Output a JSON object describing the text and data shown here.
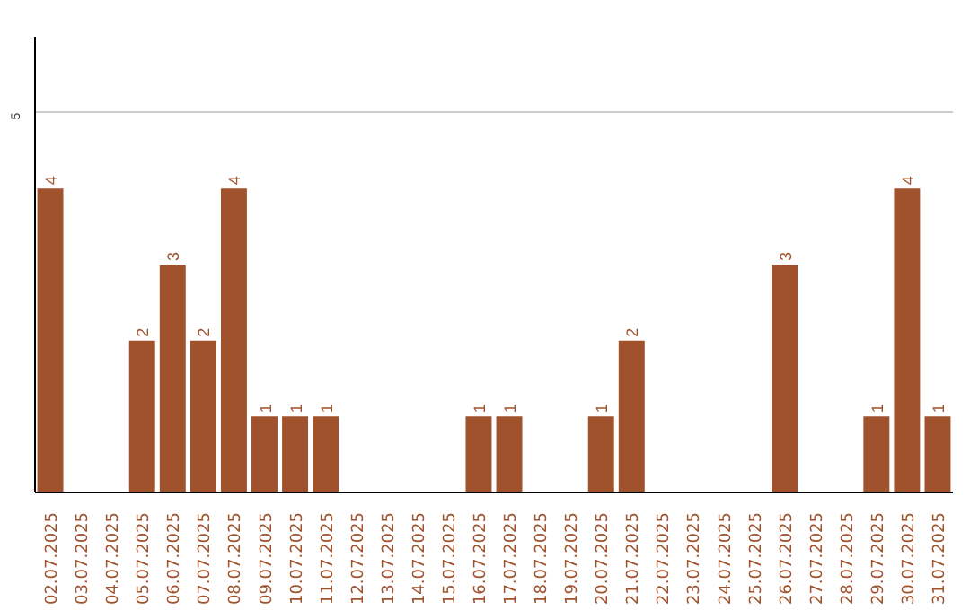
{
  "chart_data": {
    "type": "bar",
    "categories": [
      "02.07.2025",
      "03.07.2025",
      "04.07.2025",
      "05.07.2025",
      "06.07.2025",
      "07.07.2025",
      "08.07.2025",
      "09.07.2025",
      "10.07.2025",
      "11.07.2025",
      "12.07.2025",
      "13.07.2025",
      "14.07.2025",
      "15.07.2025",
      "16.07.2025",
      "17.07.2025",
      "18.07.2025",
      "19.07.2025",
      "20.07.2025",
      "21.07.2025",
      "22.07.2025",
      "23.07.2025",
      "24.07.2025",
      "25.07.2025",
      "26.07.2025",
      "27.07.2025",
      "28.07.2025",
      "29.07.2025",
      "30.07.2025",
      "31.07.2025"
    ],
    "values": [
      4,
      0,
      0,
      2,
      3,
      2,
      4,
      1,
      1,
      1,
      0,
      0,
      0,
      0,
      1,
      1,
      0,
      0,
      1,
      2,
      0,
      0,
      0,
      0,
      3,
      0,
      0,
      1,
      4,
      1
    ],
    "value_labels": [
      "4",
      null,
      null,
      "2",
      "3",
      "2",
      "4",
      "1",
      "1",
      "1",
      null,
      null,
      null,
      null,
      "1",
      "1",
      null,
      null,
      "1",
      "2",
      null,
      null,
      null,
      null,
      "3",
      null,
      null,
      "1",
      "4",
      "1"
    ],
    "color": "#a0522d",
    "ylim": [
      0,
      6
    ],
    "yticks": [
      5
    ],
    "grid": "y"
  }
}
